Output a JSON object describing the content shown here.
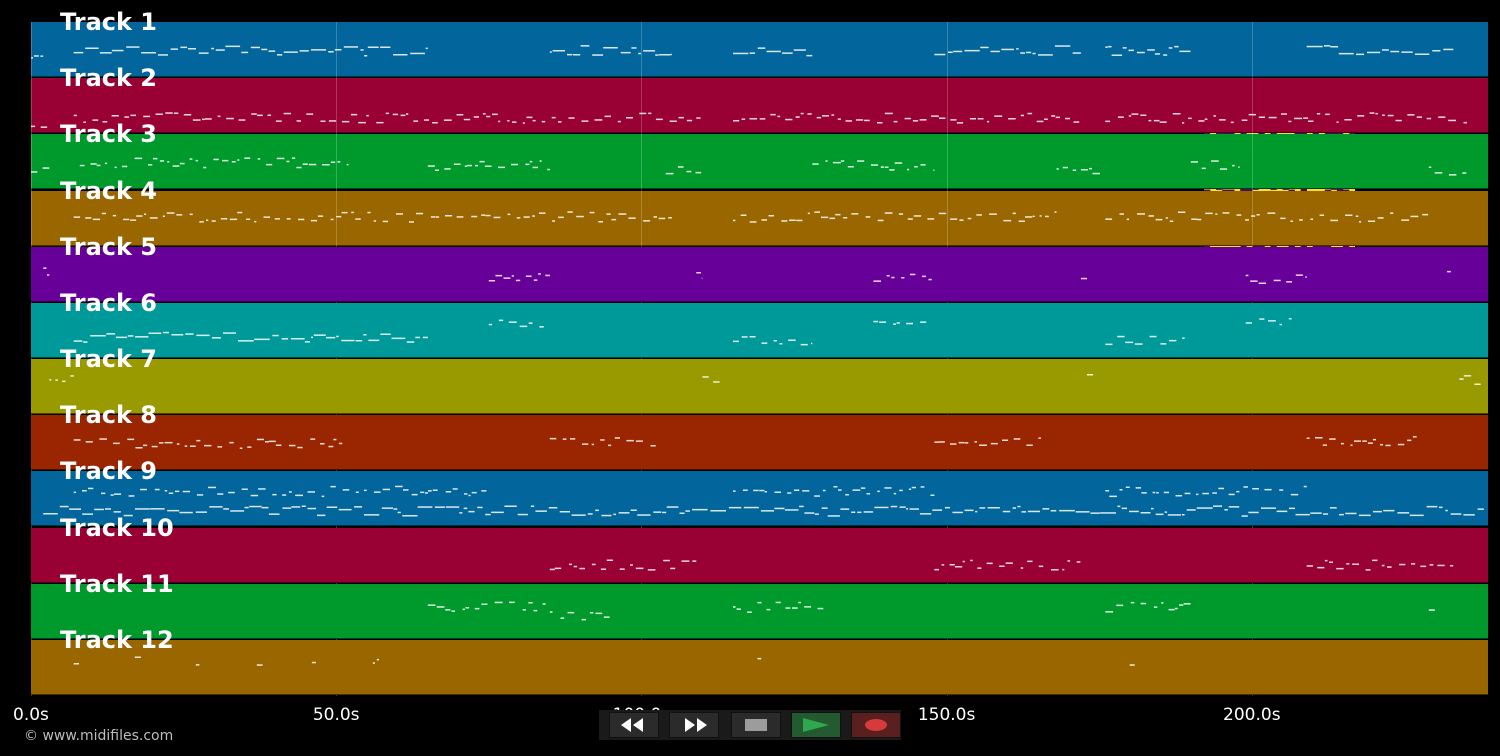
{
  "timeline": {
    "ticks": [
      "0.0s",
      "50.0s",
      "100.0s",
      "150.0s",
      "200.0s"
    ],
    "tick_seconds": [
      0,
      50,
      100,
      150,
      200
    ],
    "duration_seconds": 239
  },
  "tracks": [
    {
      "label": "Track 1",
      "color": "#02659b"
    },
    {
      "label": "Track 2",
      "color": "#990033"
    },
    {
      "label": "Track 3",
      "color": "#00992b"
    },
    {
      "label": "Track 4",
      "color": "#996600"
    },
    {
      "label": "Track 5",
      "color": "#660099"
    },
    {
      "label": "Track 6",
      "color": "#009999"
    },
    {
      "label": "Track 7",
      "color": "#999900"
    },
    {
      "label": "Track 8",
      "color": "#992600"
    },
    {
      "label": "Track 9",
      "color": "#02659b"
    },
    {
      "label": "Track 10",
      "color": "#990033"
    },
    {
      "label": "Track 11",
      "color": "#00992b"
    },
    {
      "label": "Track 12",
      "color": "#996600"
    }
  ],
  "controls": {
    "rewind_icon": "rewind-icon",
    "fast_forward_icon": "fast-forward-icon",
    "stop_icon": "stop-icon",
    "play_icon": "play-icon",
    "record_icon": "record-icon",
    "play_color": "#2fa84f",
    "record_color": "#d63a3a"
  },
  "copyright": "© www.midifiles.com",
  "qr_colors": {
    "fg": "#4a0d55",
    "bg": "#f7e033"
  }
}
